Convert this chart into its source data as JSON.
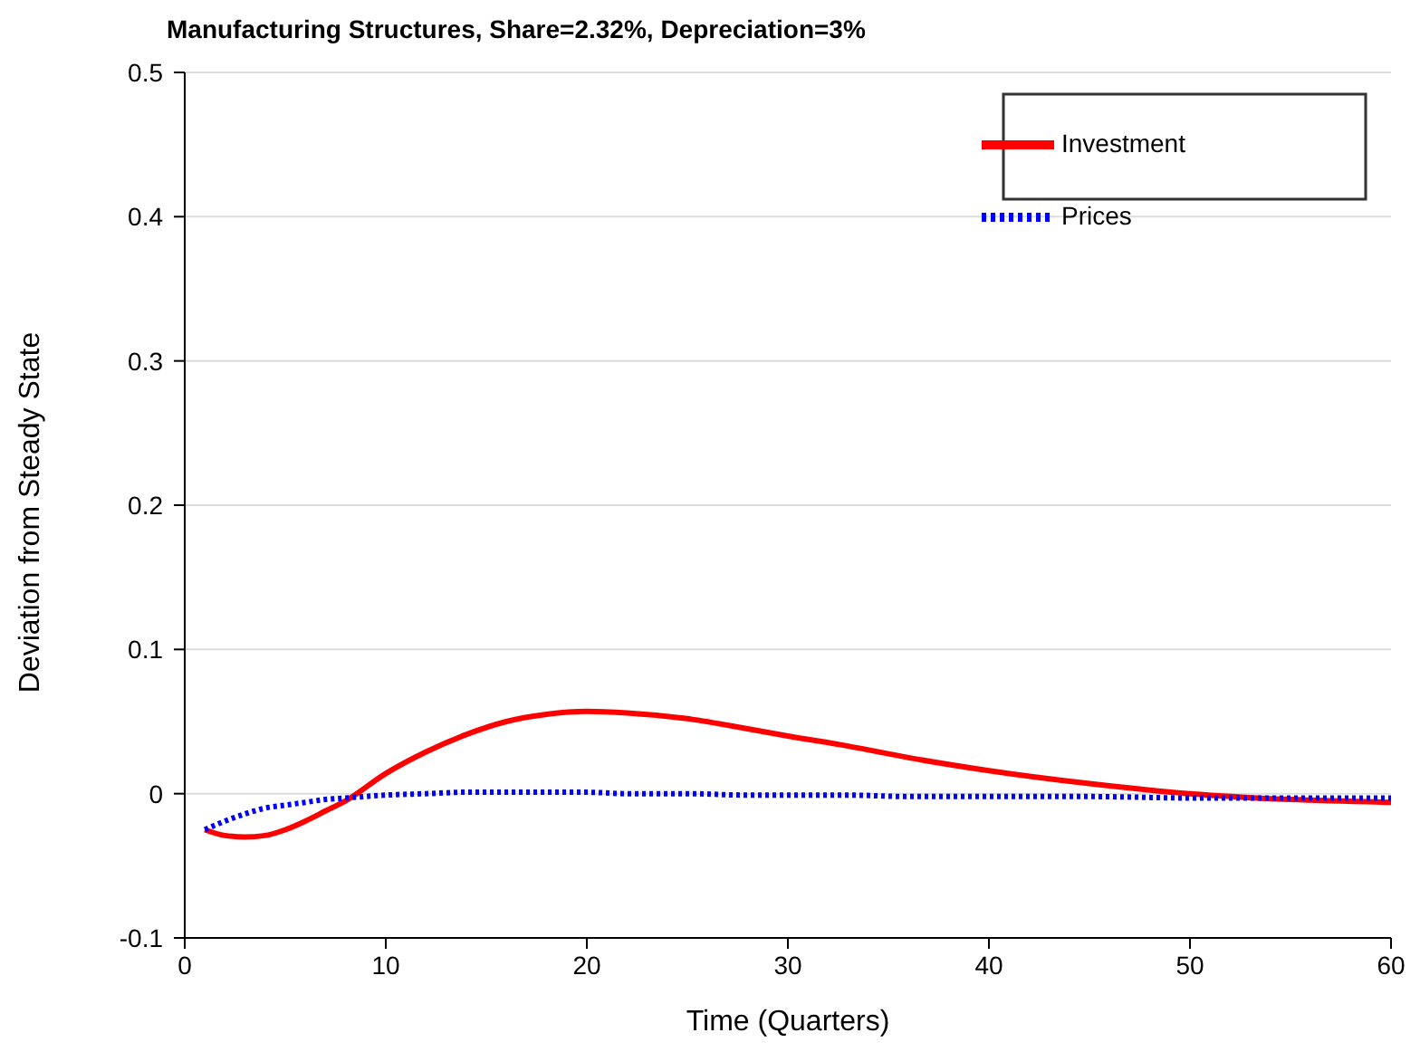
{
  "chart_data": {
    "type": "line",
    "title": "Manufacturing Structures, Share=2.32%, Depreciation=3%",
    "xlabel": "Time (Quarters)",
    "ylabel": "Deviation from Steady State",
    "x": [
      1,
      2,
      3,
      4,
      5,
      6,
      7,
      8,
      10,
      12,
      14,
      16,
      18,
      20,
      22,
      25,
      28,
      30,
      33,
      36,
      40,
      45,
      50,
      55,
      60
    ],
    "series": [
      {
        "name": "Investment",
        "color": "#ff0000",
        "line_style": "solid",
        "values": [
          -0.025,
          -0.029,
          -0.03,
          -0.029,
          -0.025,
          -0.019,
          -0.012,
          -0.005,
          0.014,
          0.029,
          0.041,
          0.05,
          0.055,
          0.057,
          0.056,
          0.052,
          0.045,
          0.04,
          0.033,
          0.025,
          0.016,
          0.007,
          0.0,
          -0.004,
          -0.006
        ]
      },
      {
        "name": "Prices",
        "color": "#0000ff",
        "line_style": "dotted",
        "values": [
          -0.025,
          -0.019,
          -0.014,
          -0.01,
          -0.008,
          -0.006,
          -0.004,
          -0.003,
          -0.001,
          0.0,
          0.001,
          0.001,
          0.001,
          0.001,
          0.0,
          0.0,
          -0.001,
          -0.001,
          -0.001,
          -0.002,
          -0.002,
          -0.002,
          -0.003,
          -0.003,
          -0.003
        ]
      }
    ],
    "xlim": [
      0,
      60
    ],
    "xticks": [
      0,
      10,
      20,
      30,
      40,
      50,
      60
    ],
    "ylim": [
      -0.1,
      0.5
    ],
    "yticks": [
      -0.1,
      0,
      0.1,
      0.2,
      0.3,
      0.4,
      0.5
    ],
    "grid": "y",
    "legend": "top right",
    "marker": "none"
  }
}
